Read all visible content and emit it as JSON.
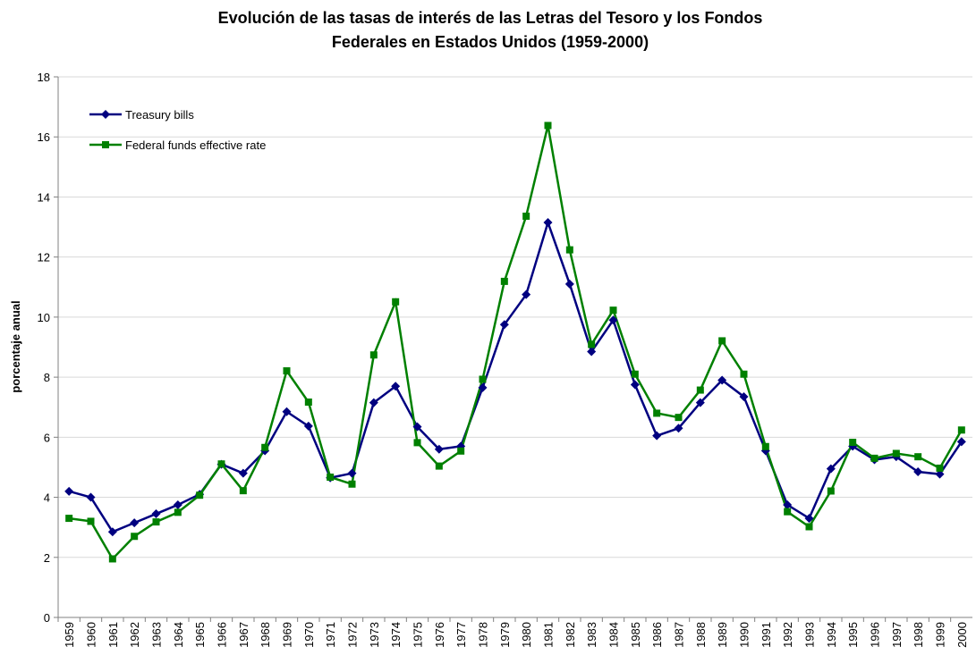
{
  "chart_data": {
    "type": "line",
    "title": [
      "Evolución de las tasas de interés de las Letras del Tesoro y los Fondos",
      "Federales en Estados Unidos (1959-2000)"
    ],
    "y_label": "porcentaje anual",
    "categories": [
      "1959",
      "1960",
      "1961",
      "1962",
      "1963",
      "1964",
      "1965",
      "1966",
      "1967",
      "1968",
      "1969",
      "1970",
      "1971",
      "1972",
      "1973",
      "1974",
      "1975",
      "1976",
      "1977",
      "1978",
      "1979",
      "1980",
      "1981",
      "1982",
      "1983",
      "1984",
      "1985",
      "1986",
      "1987",
      "1988",
      "1989",
      "1990",
      "1991",
      "1992",
      "1993",
      "1994",
      "1995",
      "1996",
      "1997",
      "1998",
      "1999",
      "2000"
    ],
    "series": [
      {
        "name": "Treasury bills",
        "color": "#000080",
        "marker": "diamond",
        "values": [
          4.2,
          4.0,
          2.85,
          3.15,
          3.45,
          3.75,
          4.1,
          5.1,
          4.8,
          5.55,
          6.85,
          6.37,
          4.65,
          4.8,
          7.15,
          7.7,
          6.35,
          5.6,
          5.7,
          7.65,
          9.75,
          10.75,
          13.15,
          11.1,
          8.85,
          9.9,
          7.75,
          6.05,
          6.3,
          7.15,
          7.9,
          7.35,
          5.55,
          3.75,
          3.3,
          4.95,
          5.7,
          5.25,
          5.35,
          4.85,
          4.77,
          5.85
        ]
      },
      {
        "name": "Federal funds effective rate",
        "color": "#008000",
        "marker": "square",
        "values": [
          3.3,
          3.2,
          1.95,
          2.7,
          3.18,
          3.5,
          4.07,
          5.11,
          4.22,
          5.66,
          8.21,
          7.17,
          4.67,
          4.44,
          8.74,
          10.51,
          5.82,
          5.04,
          5.54,
          7.93,
          11.19,
          13.36,
          16.38,
          12.24,
          9.09,
          10.23,
          8.1,
          6.8,
          6.66,
          7.57,
          9.21,
          8.1,
          5.69,
          3.52,
          3.02,
          4.21,
          5.83,
          5.3,
          5.46,
          5.35,
          4.97,
          6.24
        ]
      }
    ],
    "ylim": [
      0,
      18
    ],
    "yticks": [
      0,
      2,
      4,
      6,
      8,
      10,
      12,
      14,
      16,
      18
    ],
    "grid": true,
    "legend": "upper-left"
  }
}
